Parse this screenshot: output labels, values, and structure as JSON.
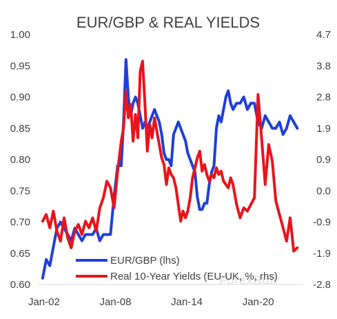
{
  "chart_data": {
    "type": "line",
    "title": "EUR/GBP & REAL YIELDS",
    "x_ticks": [
      "Jan-02",
      "Jan-08",
      "Jan-14",
      "Jan-20"
    ],
    "left_axis": {
      "ylim": [
        0.6,
        1.0
      ],
      "ticks": [
        "0.60",
        "0.65",
        "0.70",
        "0.75",
        "0.80",
        "0.85",
        "0.90",
        "0.95",
        "1.00"
      ]
    },
    "right_axis": {
      "ylim": [
        -2.8,
        4.7
      ],
      "ticks": [
        "-2.8",
        "-1.9",
        "-0.9",
        "0.0",
        "0.9",
        "1.9",
        "2.8",
        "3.8",
        "4.7"
      ]
    },
    "legend": {
      "placement": "bottom-center"
    },
    "grid": false,
    "watermark": "ForexBull",
    "series": [
      {
        "name": "EUR/GBP (lhs)",
        "axis": "left",
        "color": "#1f3fd8",
        "x": [
          2002.0,
          2002.3,
          2002.6,
          2002.9,
          2003.2,
          2003.5,
          2003.8,
          2004.1,
          2004.4,
          2004.7,
          2005.0,
          2005.3,
          2005.6,
          2005.9,
          2006.2,
          2006.5,
          2006.8,
          2007.1,
          2007.4,
          2007.7,
          2008.0,
          2008.3,
          2008.6,
          2008.8,
          2009.0,
          2009.2,
          2009.4,
          2009.6,
          2009.8,
          2010.0,
          2010.2,
          2010.4,
          2010.6,
          2010.8,
          2011.0,
          2011.2,
          2011.4,
          2011.6,
          2011.8,
          2012.0,
          2012.2,
          2012.4,
          2012.6,
          2012.8,
          2013.0,
          2013.2,
          2013.4,
          2013.6,
          2013.8,
          2014.0,
          2014.2,
          2014.4,
          2014.6,
          2014.8,
          2015.0,
          2015.2,
          2015.4,
          2015.6,
          2015.8,
          2016.0,
          2016.2,
          2016.4,
          2016.6,
          2016.8,
          2017.0,
          2017.2,
          2017.4,
          2017.6,
          2017.8,
          2018.0,
          2018.3,
          2018.6,
          2018.9,
          2019.2,
          2019.5,
          2019.8,
          2020.1,
          2020.4,
          2020.7,
          2021.0,
          2021.3,
          2021.6,
          2021.9,
          2022.2,
          2022.5,
          2022.8,
          2023.1,
          2023.4
        ],
        "y": [
          0.61,
          0.64,
          0.63,
          0.66,
          0.69,
          0.7,
          0.69,
          0.68,
          0.67,
          0.69,
          0.68,
          0.67,
          0.68,
          0.68,
          0.68,
          0.69,
          0.67,
          0.68,
          0.68,
          0.68,
          0.74,
          0.79,
          0.79,
          0.86,
          0.96,
          0.9,
          0.87,
          0.89,
          0.9,
          0.89,
          0.87,
          0.85,
          0.86,
          0.85,
          0.86,
          0.87,
          0.88,
          0.87,
          0.86,
          0.84,
          0.81,
          0.8,
          0.8,
          0.79,
          0.84,
          0.85,
          0.86,
          0.85,
          0.84,
          0.83,
          0.81,
          0.8,
          0.79,
          0.78,
          0.74,
          0.72,
          0.72,
          0.73,
          0.73,
          0.76,
          0.78,
          0.79,
          0.85,
          0.87,
          0.86,
          0.88,
          0.9,
          0.91,
          0.89,
          0.88,
          0.89,
          0.89,
          0.9,
          0.88,
          0.89,
          0.89,
          0.86,
          0.85,
          0.87,
          0.86,
          0.85,
          0.85,
          0.86,
          0.84,
          0.85,
          0.87,
          0.86,
          0.85
        ]
      },
      {
        "name": "Real 10-Year Yields (EU-UK, %, rhs)",
        "axis": "right",
        "color": "#e8141c",
        "x": [
          2002.0,
          2002.3,
          2002.6,
          2002.9,
          2003.2,
          2003.5,
          2003.8,
          2004.1,
          2004.4,
          2004.7,
          2005.0,
          2005.3,
          2005.6,
          2005.9,
          2006.2,
          2006.5,
          2006.8,
          2007.1,
          2007.4,
          2007.7,
          2008.0,
          2008.3,
          2008.6,
          2008.8,
          2009.0,
          2009.2,
          2009.4,
          2009.6,
          2009.8,
          2010.0,
          2010.2,
          2010.4,
          2010.6,
          2010.8,
          2011.0,
          2011.2,
          2011.4,
          2011.6,
          2011.8,
          2012.0,
          2012.2,
          2012.4,
          2012.6,
          2012.8,
          2013.0,
          2013.2,
          2013.4,
          2013.6,
          2013.8,
          2014.0,
          2014.2,
          2014.4,
          2014.6,
          2014.8,
          2015.0,
          2015.2,
          2015.4,
          2015.6,
          2015.8,
          2016.0,
          2016.2,
          2016.4,
          2016.6,
          2016.8,
          2017.0,
          2017.2,
          2017.4,
          2017.6,
          2017.8,
          2018.0,
          2018.3,
          2018.6,
          2018.9,
          2019.2,
          2019.5,
          2019.8,
          2020.1,
          2020.4,
          2020.7,
          2021.0,
          2021.3,
          2021.6,
          2021.9,
          2022.2,
          2022.5,
          2022.8,
          2023.1,
          2023.4
        ],
        "y": [
          -0.9,
          -0.7,
          -1.1,
          -0.6,
          -1.2,
          -1.5,
          -0.8,
          -1.4,
          -1.7,
          -1.2,
          -1.0,
          -1.3,
          -0.9,
          -1.1,
          -0.8,
          -1.2,
          -0.5,
          -0.2,
          0.3,
          0.1,
          -0.5,
          0.6,
          1.5,
          1.9,
          3.0,
          2.2,
          2.6,
          1.5,
          2.3,
          1.6,
          3.6,
          3.9,
          2.6,
          1.2,
          2.0,
          1.6,
          2.2,
          1.8,
          1.4,
          1.0,
          0.8,
          0.2,
          0.7,
          0.5,
          0.4,
          0.1,
          -0.4,
          -0.9,
          -0.6,
          -0.8,
          -0.6,
          -0.2,
          0.4,
          0.7,
          1.0,
          1.2,
          0.6,
          0.8,
          0.5,
          0.3,
          0.5,
          0.4,
          0.7,
          0.5,
          0.6,
          0.3,
          0.2,
          0.1,
          0.4,
          0.2,
          -0.4,
          -0.8,
          -0.5,
          -0.6,
          -0.4,
          -0.2,
          2.9,
          1.6,
          0.2,
          1.4,
          0.9,
          -0.3,
          -0.7,
          -1.1,
          -1.5,
          -0.8,
          -1.8,
          -1.7
        ]
      }
    ]
  }
}
